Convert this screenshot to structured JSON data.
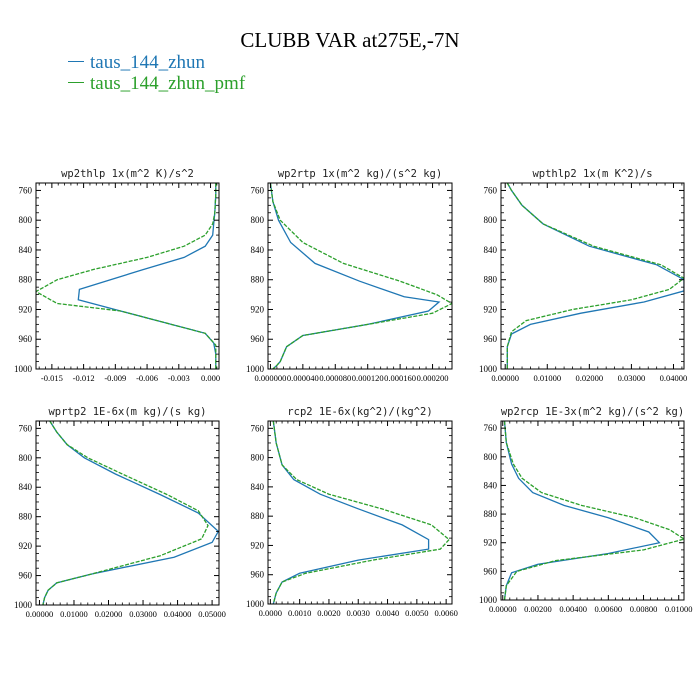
{
  "title": "CLUBB VAR at275E,-7N",
  "colors": {
    "series1": "#1f77b4",
    "series2": "#2ca02c",
    "axis": "#000000"
  },
  "legend": [
    {
      "label": "taus_144_zhun",
      "color": "#1f77b4"
    },
    {
      "label": "taus_144_zhun_pmf",
      "color": "#2ca02c"
    }
  ],
  "chart_data": [
    {
      "type": "line",
      "title": "wp2thlp  1x(m^2 K)/s^2",
      "xlim": [
        -0.0165,
        0.0008
      ],
      "ylim": [
        1000,
        750
      ],
      "xticks": [
        -0.015,
        -0.012,
        -0.009,
        -0.006,
        -0.003,
        0.0
      ],
      "xtick_labels": [
        "-0.015",
        "-0.012",
        "-0.009",
        "-0.006",
        "-0.003",
        "0.000"
      ],
      "yticks": [
        760,
        800,
        840,
        880,
        920,
        960,
        1000
      ],
      "series": [
        {
          "name": "taus_144_zhun",
          "dashed": false,
          "x": [
            0.0005,
            0.0005,
            0.0004,
            0.0003,
            0.0002,
            -0.0005,
            -0.0025,
            -0.0065,
            -0.0124,
            -0.0125,
            -0.0085,
            -0.0005,
            0.0003,
            0.0005,
            0.0005
          ],
          "y": [
            750,
            765,
            790,
            805,
            820,
            835,
            850,
            867,
            893,
            907,
            922,
            952,
            965,
            980,
            1000
          ]
        },
        {
          "name": "taus_144_zhun_pmf",
          "dashed": true,
          "x": [
            0.0005,
            0.0005,
            0.0004,
            0.0002,
            -0.0005,
            -0.0025,
            -0.006,
            -0.011,
            -0.0145,
            -0.0165,
            -0.0145,
            -0.0085,
            -0.0005,
            0.0005,
            0.0005
          ],
          "y": [
            750,
            765,
            790,
            805,
            820,
            835,
            850,
            866,
            880,
            896,
            912,
            922,
            952,
            968,
            1000
          ]
        }
      ]
    },
    {
      "type": "line",
      "title": "wp2rtp  1x(m^2 kg)/(s^2 kg)",
      "xlim": [
        -3e-06,
        0.000224
      ],
      "ylim": [
        1000,
        750
      ],
      "xticks": [
        0.0,
        4e-05,
        8e-05,
        0.00012,
        0.00016,
        0.0002
      ],
      "xtick_labels": [
        "0.000000",
        "0.000040",
        "0.000080",
        "0.000120",
        "0.000160",
        "0.000200"
      ],
      "yticks": [
        760,
        800,
        840,
        880,
        920,
        960,
        1000
      ],
      "series": [
        {
          "name": "taus_144_zhun",
          "dashed": false,
          "x": [
            0.0,
            3e-06,
            1e-05,
            2.5e-05,
            5.5e-05,
            0.00011,
            0.000165,
            0.000208,
            0.000195,
            0.00012,
            4e-05,
            2e-05,
            1.2e-05,
            8e-06,
            3e-06
          ],
          "y": [
            750,
            775,
            800,
            830,
            858,
            882,
            903,
            910,
            922,
            940,
            955,
            970,
            990,
            995,
            1000
          ]
        },
        {
          "name": "taus_144_zhun_pmf",
          "dashed": true,
          "x": [
            0.0,
            3e-06,
            1.2e-05,
            4e-05,
            9e-05,
            0.00016,
            0.000205,
            0.000224,
            0.0002,
            0.00012,
            4e-05,
            2e-05,
            1.2e-05,
            8e-06,
            3e-06
          ],
          "y": [
            750,
            775,
            800,
            830,
            858,
            882,
            900,
            912,
            925,
            940,
            955,
            970,
            990,
            995,
            1000
          ]
        }
      ]
    },
    {
      "type": "line",
      "title": "wpthlp2  1x(m K^2)/s",
      "xlim": [
        -0.001,
        0.0425
      ],
      "ylim": [
        1000,
        750
      ],
      "xticks": [
        0.0,
        0.01,
        0.02,
        0.03,
        0.04
      ],
      "xtick_labels": [
        "0.00000",
        "0.01000",
        "0.02000",
        "0.03000",
        "0.04000"
      ],
      "yticks": [
        760,
        800,
        840,
        880,
        920,
        960,
        1000
      ],
      "series": [
        {
          "name": "taus_144_zhun",
          "dashed": false,
          "x": [
            0.0005,
            0.0015,
            0.004,
            0.009,
            0.02,
            0.036,
            0.0425,
            0.0425,
            0.033,
            0.018,
            0.006,
            0.0015,
            0.0005,
            0.0005
          ],
          "y": [
            750,
            760,
            780,
            805,
            835,
            860,
            880,
            895,
            910,
            925,
            940,
            953,
            970,
            1000
          ]
        },
        {
          "name": "taus_144_zhun_pmf",
          "dashed": true,
          "x": [
            0.0005,
            0.0015,
            0.004,
            0.009,
            0.021,
            0.037,
            0.0425,
            0.039,
            0.03,
            0.016,
            0.005,
            0.0015,
            0.0005,
            0.0005
          ],
          "y": [
            750,
            760,
            780,
            805,
            835,
            860,
            878,
            893,
            907,
            920,
            935,
            950,
            970,
            1000
          ]
        }
      ]
    },
    {
      "type": "line",
      "title": "wprtp2  1E-6x(m kg)/(s kg)",
      "xlim": [
        -0.001,
        0.052
      ],
      "ylim": [
        1000,
        750
      ],
      "xticks": [
        0.0,
        0.01,
        0.02,
        0.03,
        0.04,
        0.05
      ],
      "xtick_labels": [
        "0.00000",
        "0.01000",
        "0.02000",
        "0.03000",
        "0.04000",
        "0.05000"
      ],
      "yticks": [
        760,
        800,
        840,
        880,
        920,
        960,
        1000
      ],
      "series": [
        {
          "name": "taus_144_zhun",
          "dashed": false,
          "x": [
            0.003,
            0.005,
            0.008,
            0.013,
            0.022,
            0.035,
            0.046,
            0.0518,
            0.05,
            0.039,
            0.015,
            0.005,
            0.0025,
            0.0015,
            0.001
          ],
          "y": [
            750,
            765,
            782,
            800,
            822,
            850,
            875,
            900,
            915,
            935,
            958,
            970,
            980,
            990,
            1000
          ]
        },
        {
          "name": "taus_144_zhun_pmf",
          "dashed": true,
          "x": [
            0.003,
            0.005,
            0.008,
            0.014,
            0.024,
            0.037,
            0.046,
            0.0488,
            0.047,
            0.035,
            0.015,
            0.005,
            0.0025,
            0.0015,
            0.001
          ],
          "y": [
            750,
            765,
            782,
            800,
            822,
            850,
            872,
            892,
            910,
            933,
            958,
            970,
            980,
            990,
            1000
          ]
        }
      ]
    },
    {
      "type": "line",
      "title": "rcp2  1E-6x(kg^2)/(kg^2)",
      "xlim": [
        -8e-05,
        0.0062
      ],
      "ylim": [
        1000,
        750
      ],
      "xticks": [
        0.0,
        0.001,
        0.002,
        0.003,
        0.004,
        0.005,
        0.006
      ],
      "xtick_labels": [
        "0.0000",
        "0.0010",
        "0.0020",
        "0.0030",
        "0.0040",
        "0.0050",
        "0.0060"
      ],
      "yticks": [
        760,
        800,
        840,
        880,
        920,
        960,
        1000
      ],
      "series": [
        {
          "name": "taus_144_zhun",
          "dashed": false,
          "x": [
            0.0001,
            0.0002,
            0.0004,
            0.0008,
            0.0017,
            0.003,
            0.0045,
            0.0054,
            0.0054,
            0.003,
            0.001,
            0.0004,
            0.0002,
            0.0001
          ],
          "y": [
            750,
            780,
            810,
            830,
            850,
            870,
            892,
            912,
            925,
            940,
            958,
            970,
            985,
            1000
          ]
        },
        {
          "name": "taus_144_zhun_pmf",
          "dashed": true,
          "x": [
            0.0001,
            0.0002,
            0.0004,
            0.0009,
            0.002,
            0.0038,
            0.0055,
            0.0061,
            0.0058,
            0.0035,
            0.0012,
            0.0004,
            0.0002,
            0.0001
          ],
          "y": [
            750,
            780,
            810,
            830,
            850,
            870,
            892,
            912,
            925,
            940,
            958,
            970,
            985,
            1000
          ]
        }
      ]
    },
    {
      "type": "line",
      "title": "wp2rcp  1E-3x(m^2 kg)/(s^2 kg)",
      "xlim": [
        -0.0001,
        0.0103
      ],
      "ylim": [
        1000,
        750
      ],
      "xticks": [
        0.0,
        0.002,
        0.004,
        0.006,
        0.008,
        0.01
      ],
      "xtick_labels": [
        "0.00000",
        "0.00200",
        "0.00400",
        "0.00600",
        "0.00800",
        "0.01000"
      ],
      "yticks": [
        760,
        800,
        840,
        880,
        920,
        960,
        1000
      ],
      "series": [
        {
          "name": "taus_144_zhun",
          "dashed": false,
          "x": [
            0.0001,
            0.0002,
            0.0005,
            0.0009,
            0.0017,
            0.0035,
            0.006,
            0.0083,
            0.0089,
            0.006,
            0.002,
            0.0005,
            0.0002,
            0.0001
          ],
          "y": [
            750,
            780,
            810,
            830,
            850,
            868,
            885,
            905,
            920,
            935,
            950,
            962,
            980,
            1000
          ]
        },
        {
          "name": "taus_144_zhun_pmf",
          "dashed": true,
          "x": [
            0.0001,
            0.0002,
            0.0006,
            0.0011,
            0.0022,
            0.0045,
            0.0075,
            0.0095,
            0.0103,
            0.008,
            0.003,
            0.0008,
            0.0002,
            0.0001
          ],
          "y": [
            750,
            780,
            810,
            830,
            850,
            868,
            885,
            902,
            915,
            930,
            945,
            960,
            980,
            1000
          ]
        }
      ]
    }
  ]
}
